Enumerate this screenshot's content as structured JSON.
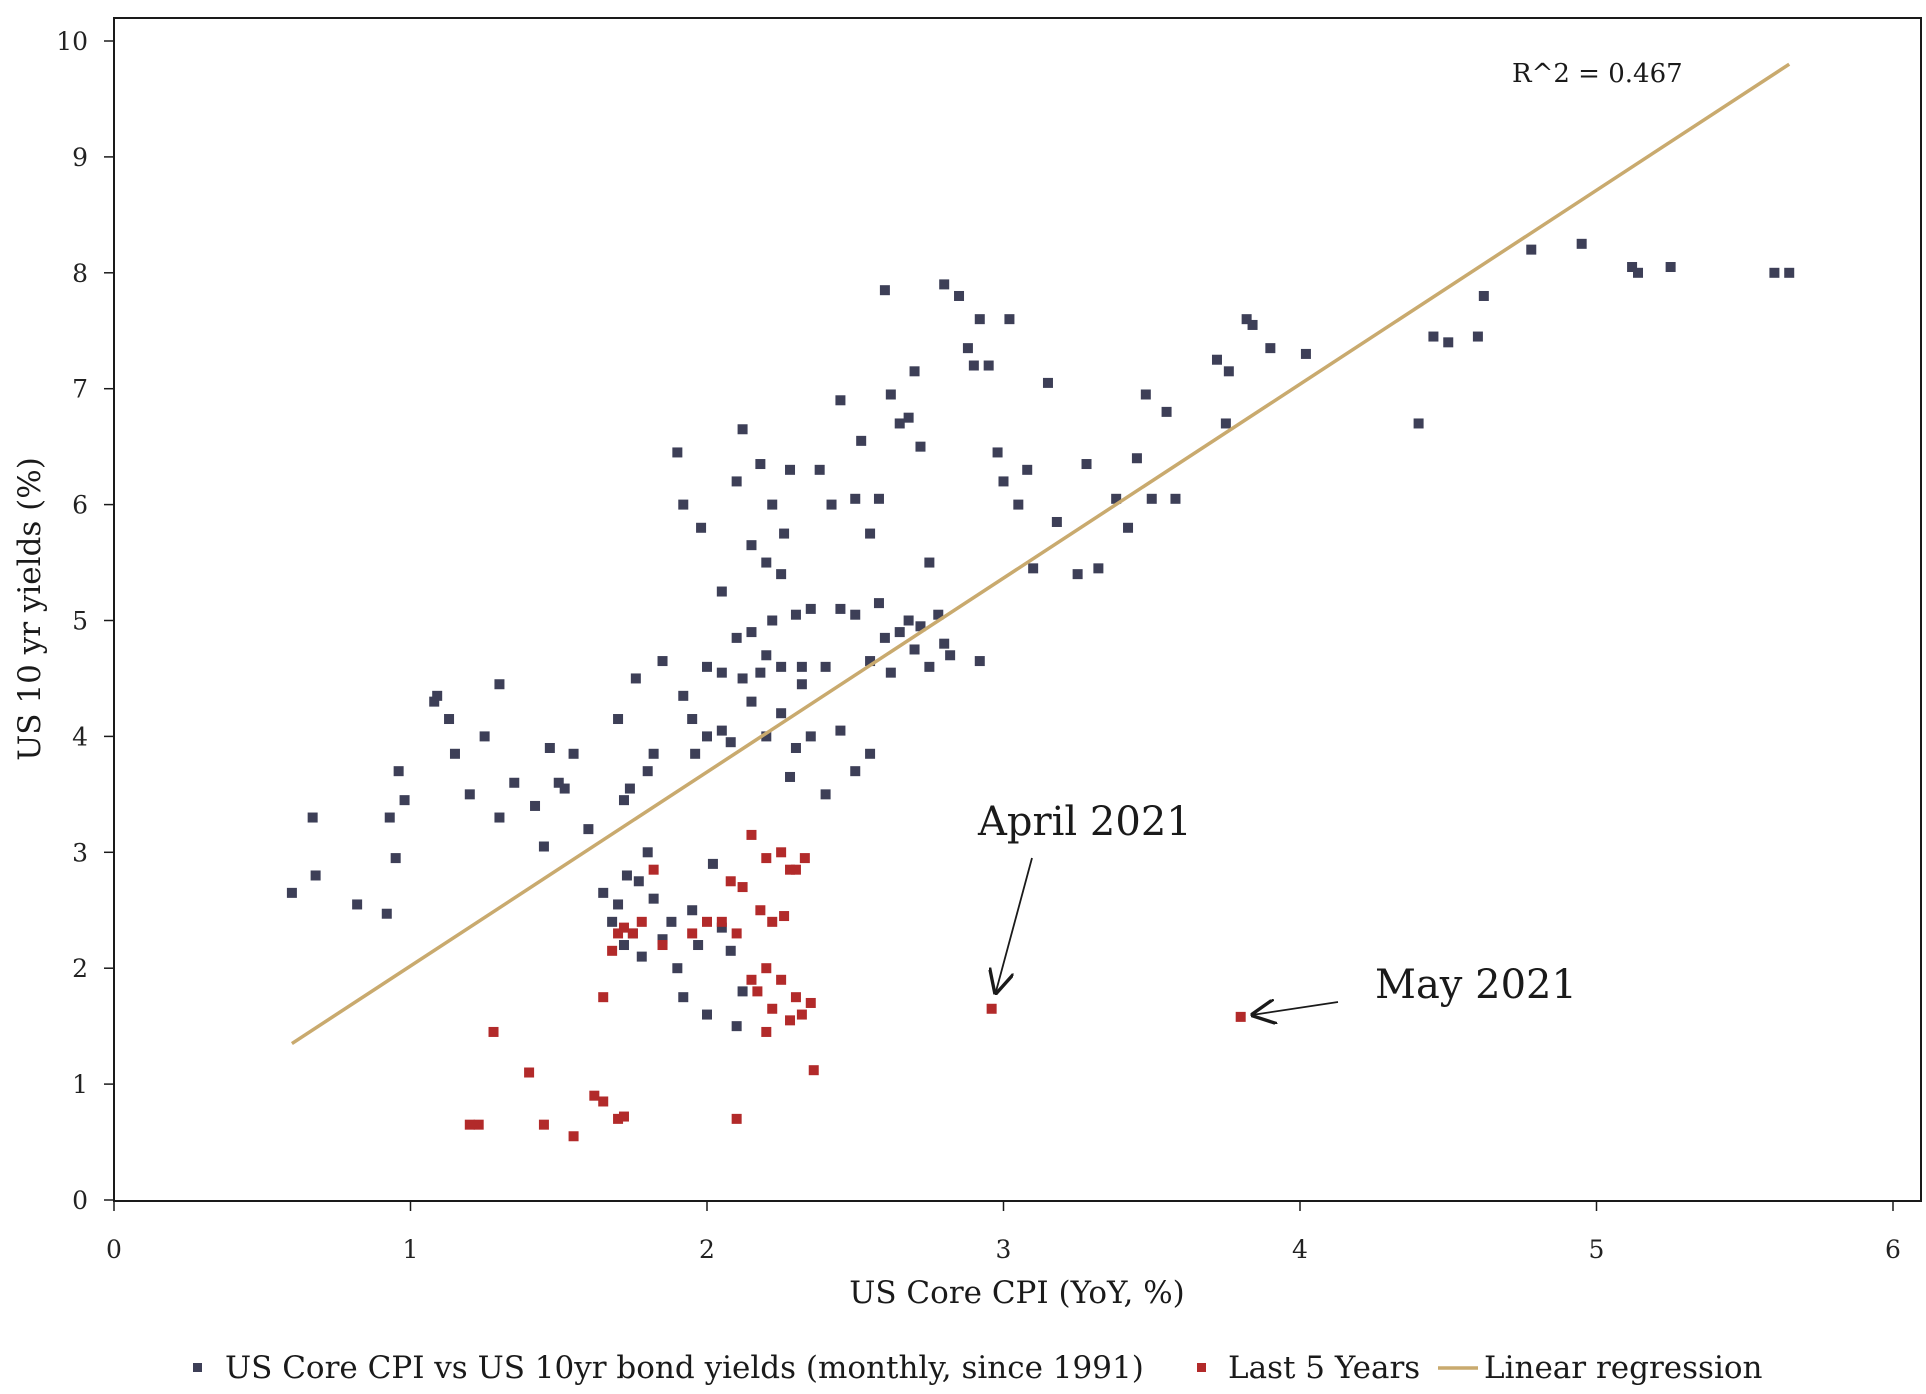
{
  "chart_data": {
    "type": "scatter",
    "xlabel": "US Core CPI (YoY, %)",
    "ylabel": "US 10 yr yields (%)",
    "xlim": [
      0,
      6
    ],
    "ylim": [
      0,
      10
    ],
    "x_ticks": [
      "0",
      "1",
      "2",
      "3",
      "4",
      "5",
      "6"
    ],
    "y_ticks": [
      "0",
      "1",
      "2",
      "3",
      "4",
      "5",
      "6",
      "7",
      "8",
      "9",
      "10"
    ],
    "grid": false,
    "legend_placement": "bottom",
    "colors": {
      "history": "#3d3f57",
      "recent": "#b22a2a",
      "regression": "#c9aa6e"
    },
    "series": [
      {
        "name": "US Core CPI vs US 10yr bond yields (monthly, since 1991)",
        "color": "#3d3f57",
        "points": [
          [
            0.6,
            2.65
          ],
          [
            0.67,
            3.3
          ],
          [
            0.68,
            2.8
          ],
          [
            0.82,
            2.55
          ],
          [
            0.92,
            2.47
          ],
          [
            0.93,
            3.3
          ],
          [
            0.95,
            2.95
          ],
          [
            0.96,
            3.7
          ],
          [
            0.98,
            3.45
          ],
          [
            1.08,
            4.3
          ],
          [
            1.09,
            4.35
          ],
          [
            1.13,
            4.15
          ],
          [
            1.15,
            3.85
          ],
          [
            1.2,
            3.5
          ],
          [
            1.25,
            4.0
          ],
          [
            1.3,
            4.45
          ],
          [
            1.3,
            3.3
          ],
          [
            1.35,
            3.6
          ],
          [
            1.42,
            3.4
          ],
          [
            1.45,
            3.05
          ],
          [
            1.47,
            3.9
          ],
          [
            1.5,
            3.6
          ],
          [
            1.52,
            3.55
          ],
          [
            1.55,
            3.85
          ],
          [
            1.6,
            3.2
          ],
          [
            1.65,
            2.65
          ],
          [
            1.68,
            2.4
          ],
          [
            1.7,
            2.55
          ],
          [
            1.72,
            2.2
          ],
          [
            1.73,
            2.8
          ],
          [
            1.75,
            2.3
          ],
          [
            1.77,
            2.75
          ],
          [
            1.78,
            2.1
          ],
          [
            1.8,
            3.0
          ],
          [
            1.82,
            2.6
          ],
          [
            1.85,
            2.25
          ],
          [
            1.88,
            2.4
          ],
          [
            1.9,
            2.0
          ],
          [
            1.92,
            1.75
          ],
          [
            1.95,
            2.5
          ],
          [
            1.97,
            2.2
          ],
          [
            2.0,
            1.6
          ],
          [
            2.02,
            2.9
          ],
          [
            2.05,
            2.35
          ],
          [
            2.08,
            2.15
          ],
          [
            2.1,
            1.5
          ],
          [
            2.12,
            1.8
          ],
          [
            1.7,
            4.15
          ],
          [
            1.72,
            3.45
          ],
          [
            1.74,
            3.55
          ],
          [
            1.76,
            4.5
          ],
          [
            1.8,
            3.7
          ],
          [
            1.82,
            3.85
          ],
          [
            1.85,
            4.65
          ],
          [
            1.92,
            4.35
          ],
          [
            1.95,
            4.15
          ],
          [
            1.96,
            3.85
          ],
          [
            2.0,
            4.0
          ],
          [
            2.05,
            4.05
          ],
          [
            2.08,
            3.95
          ],
          [
            2.12,
            4.5
          ],
          [
            2.15,
            4.3
          ],
          [
            2.18,
            4.55
          ],
          [
            2.2,
            4.0
          ],
          [
            2.25,
            4.2
          ],
          [
            2.28,
            3.65
          ],
          [
            2.3,
            3.9
          ],
          [
            2.32,
            4.45
          ],
          [
            2.35,
            4.0
          ],
          [
            2.4,
            3.5
          ],
          [
            2.45,
            4.05
          ],
          [
            2.5,
            3.7
          ],
          [
            2.55,
            3.85
          ],
          [
            1.9,
            6.45
          ],
          [
            1.92,
            6.0
          ],
          [
            1.98,
            5.8
          ],
          [
            2.05,
            5.25
          ],
          [
            2.1,
            6.2
          ],
          [
            2.12,
            6.65
          ],
          [
            2.15,
            5.65
          ],
          [
            2.18,
            6.35
          ],
          [
            2.2,
            5.5
          ],
          [
            2.22,
            6.0
          ],
          [
            2.25,
            5.4
          ],
          [
            2.26,
            5.75
          ],
          [
            2.28,
            6.3
          ],
          [
            2.35,
            5.1
          ],
          [
            2.38,
            6.3
          ],
          [
            2.42,
            6.0
          ],
          [
            2.45,
            6.9
          ],
          [
            2.5,
            6.05
          ],
          [
            2.52,
            6.55
          ],
          [
            2.55,
            5.75
          ],
          [
            2.58,
            6.05
          ],
          [
            2.62,
            6.95
          ],
          [
            2.65,
            6.7
          ],
          [
            2.68,
            6.75
          ],
          [
            2.7,
            7.15
          ],
          [
            2.72,
            6.5
          ],
          [
            2.75,
            5.5
          ],
          [
            2.6,
            7.85
          ],
          [
            2.8,
            7.9
          ],
          [
            2.85,
            7.8
          ],
          [
            2.88,
            7.35
          ],
          [
            2.9,
            7.2
          ],
          [
            2.92,
            7.6
          ],
          [
            2.95,
            7.2
          ],
          [
            2.98,
            6.45
          ],
          [
            3.0,
            6.2
          ],
          [
            3.02,
            7.6
          ],
          [
            3.05,
            6.0
          ],
          [
            3.08,
            6.3
          ],
          [
            3.1,
            5.45
          ],
          [
            3.15,
            7.05
          ],
          [
            3.18,
            5.85
          ],
          [
            3.25,
            5.4
          ],
          [
            3.28,
            6.35
          ],
          [
            3.32,
            5.45
          ],
          [
            3.38,
            6.05
          ],
          [
            3.42,
            5.8
          ],
          [
            3.45,
            6.4
          ],
          [
            3.48,
            6.95
          ],
          [
            3.5,
            6.05
          ],
          [
            3.55,
            6.8
          ],
          [
            3.58,
            6.05
          ],
          [
            3.72,
            7.25
          ],
          [
            3.75,
            6.7
          ],
          [
            3.76,
            7.15
          ],
          [
            3.82,
            7.6
          ],
          [
            3.84,
            7.55
          ],
          [
            3.9,
            7.35
          ],
          [
            4.02,
            7.3
          ],
          [
            4.4,
            6.7
          ],
          [
            4.45,
            7.45
          ],
          [
            4.5,
            7.4
          ],
          [
            4.6,
            7.45
          ],
          [
            4.62,
            7.8
          ],
          [
            4.78,
            8.2
          ],
          [
            4.95,
            8.25
          ],
          [
            5.12,
            8.05
          ],
          [
            5.14,
            8.0
          ],
          [
            5.25,
            8.05
          ],
          [
            5.6,
            8.0
          ],
          [
            5.65,
            8.0
          ],
          [
            2.4,
            4.6
          ],
          [
            2.45,
            5.1
          ],
          [
            2.5,
            5.05
          ],
          [
            2.55,
            4.65
          ],
          [
            2.58,
            5.15
          ],
          [
            2.6,
            4.85
          ],
          [
            2.62,
            4.55
          ],
          [
            2.65,
            4.9
          ],
          [
            2.68,
            5.0
          ],
          [
            2.7,
            4.75
          ],
          [
            2.72,
            4.95
          ],
          [
            2.75,
            4.6
          ],
          [
            2.78,
            5.05
          ],
          [
            2.8,
            4.8
          ],
          [
            2.82,
            4.7
          ],
          [
            2.92,
            4.65
          ],
          [
            2.15,
            4.9
          ],
          [
            2.2,
            4.7
          ],
          [
            2.22,
            5.0
          ],
          [
            2.3,
            5.05
          ],
          [
            2.32,
            4.6
          ],
          [
            2.25,
            4.6
          ],
          [
            2.1,
            4.85
          ],
          [
            2.05,
            4.55
          ],
          [
            2.0,
            4.6
          ]
        ]
      },
      {
        "name": "Last 5 Years",
        "color": "#b22a2a",
        "points": [
          [
            1.2,
            0.65
          ],
          [
            1.23,
            0.65
          ],
          [
            1.28,
            1.45
          ],
          [
            1.4,
            1.1
          ],
          [
            1.45,
            0.65
          ],
          [
            1.55,
            0.55
          ],
          [
            1.62,
            0.9
          ],
          [
            1.65,
            0.85
          ],
          [
            1.7,
            0.7
          ],
          [
            1.72,
            0.72
          ],
          [
            1.65,
            1.75
          ],
          [
            1.68,
            2.15
          ],
          [
            1.7,
            2.3
          ],
          [
            1.72,
            2.35
          ],
          [
            1.75,
            2.3
          ],
          [
            1.78,
            2.4
          ],
          [
            1.82,
            2.85
          ],
          [
            1.85,
            2.2
          ],
          [
            1.95,
            2.3
          ],
          [
            2.0,
            2.4
          ],
          [
            2.05,
            2.4
          ],
          [
            2.08,
            2.75
          ],
          [
            2.1,
            2.3
          ],
          [
            2.12,
            2.7
          ],
          [
            2.15,
            3.15
          ],
          [
            2.18,
            2.5
          ],
          [
            2.2,
            2.95
          ],
          [
            2.22,
            2.4
          ],
          [
            2.25,
            3.0
          ],
          [
            2.26,
            2.45
          ],
          [
            2.28,
            2.85
          ],
          [
            2.3,
            2.85
          ],
          [
            2.33,
            2.95
          ],
          [
            2.15,
            1.9
          ],
          [
            2.17,
            1.8
          ],
          [
            2.2,
            2.0
          ],
          [
            2.22,
            1.65
          ],
          [
            2.25,
            1.9
          ],
          [
            2.28,
            1.55
          ],
          [
            2.3,
            1.75
          ],
          [
            2.32,
            1.6
          ],
          [
            2.35,
            1.7
          ],
          [
            2.2,
            1.45
          ],
          [
            2.36,
            1.12
          ],
          [
            2.1,
            0.7
          ],
          [
            2.96,
            1.65
          ],
          [
            3.8,
            1.58
          ]
        ]
      }
    ],
    "regression": {
      "name": "Linear regression",
      "color": "#c9aa6e",
      "x": [
        0.6,
        5.65
      ],
      "y": [
        1.35,
        9.8
      ],
      "label": "R^2 = 0.467"
    },
    "annotations": [
      {
        "text": "April 2021",
        "point": [
          2.96,
          1.65
        ]
      },
      {
        "text": "May 2021",
        "point": [
          3.8,
          1.58
        ]
      }
    ]
  }
}
